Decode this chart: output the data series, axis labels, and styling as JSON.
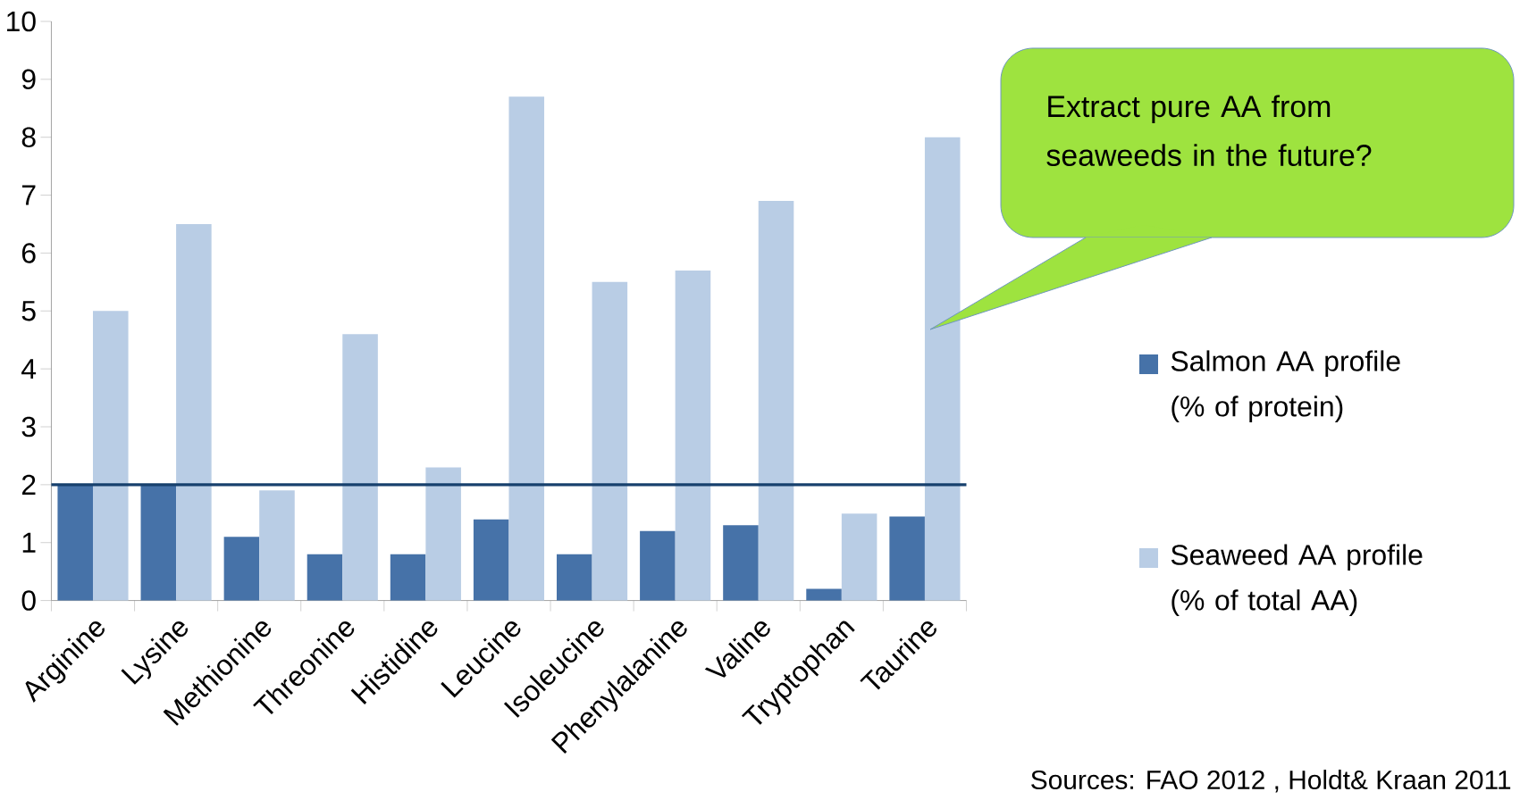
{
  "chart_data": {
    "type": "bar",
    "categories": [
      "Arginine",
      "Lysine",
      "Methionine",
      "Threonine",
      "Histidine",
      "Leucine",
      "Isoleucine",
      "Phenylalanine",
      "Valine",
      "Tryptophan",
      "Taurine"
    ],
    "series": [
      {
        "name": "Salmon AA profile (% of protein)",
        "color": "#4672a8",
        "values": [
          2.0,
          2.0,
          1.1,
          0.8,
          0.8,
          1.4,
          0.8,
          1.2,
          1.3,
          0.2,
          1.45
        ]
      },
      {
        "name": "Seaweed AA profile (% of total AA)",
        "color": "#b9cde5",
        "values": [
          5.0,
          6.5,
          1.9,
          4.6,
          2.3,
          8.7,
          5.5,
          5.7,
          6.9,
          1.5,
          8.0
        ]
      }
    ],
    "ylim": [
      0,
      10
    ],
    "yticks": [
      0,
      1,
      2,
      3,
      4,
      5,
      6,
      7,
      8,
      9,
      10
    ],
    "ref_lines": [
      {
        "axis": "y",
        "value": 2,
        "color": "#17406d"
      }
    ],
    "legend": "right",
    "grid": false,
    "annotations": [
      "Extract pure AA from seaweeds in the future?",
      "Sources: FAO 2012 , Holdt& Kraan 2011"
    ]
  }
}
